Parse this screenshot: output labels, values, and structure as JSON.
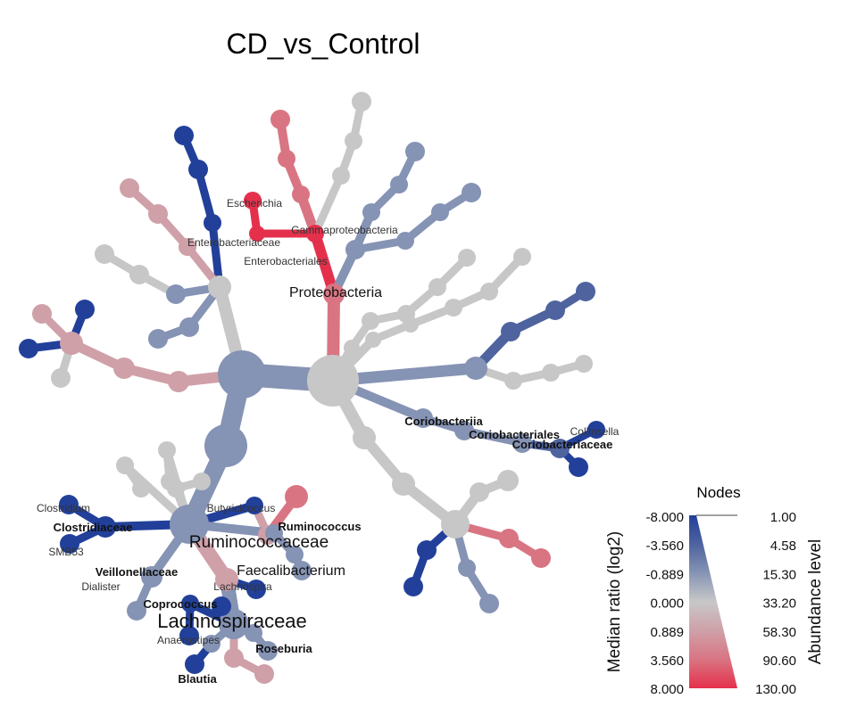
{
  "title": "CD_vs_Control",
  "colors": {
    "c_-8": "#22409a",
    "c_-3.56": "#4f639f",
    "c_-0.889": "#8593b4",
    "c_0": "#c7c7c7",
    "c_0.889": "#cfa0a8",
    "c_3.56": "#d97583",
    "c_8": "#e5304c"
  },
  "labels": {
    "proteobacteria": "Proteobacteria",
    "gammaproteobacteria": "Gammaproteobacteria",
    "enterobacteriales": "Enterobacteriales",
    "enterobacteriaceae": "Enterobacteriaceae",
    "escherichia": "Escherichia",
    "coriobacteriia": "Coriobacteriia",
    "coriobacteriales": "Coriobacteriales",
    "coriobacteriaceae": "Coriobacteriaceae",
    "collinsella": "Collinsella",
    "clostridium": "Clostridium",
    "clostridiaceae": "Clostridiaceae",
    "smb53": "SMB53",
    "butyricicoccus": "Butyricicoccus",
    "ruminococcus": "Ruminococcus",
    "ruminococcaceae": "Ruminococcaceae",
    "veillonellaceae": "Veillonellaceae",
    "faecalibacterium": "Faecalibacterium",
    "dialister": "Dialister",
    "lachnospira": "Lachnospira",
    "coprococcus": "Coprococcus",
    "lachnospiraceae": "Lachnospiraceae",
    "anaerostipes": "Anaerostipes",
    "roseburia": "Roseburia",
    "blautia": "Blautia"
  },
  "legend": {
    "title": "Nodes",
    "left_axis": "Median ratio (log2)",
    "right_axis": "Abundance level",
    "left_ticks": [
      "-8.000",
      "-3.560",
      "-0.889",
      "0.000",
      "0.889",
      "3.560",
      "8.000"
    ],
    "right_ticks": [
      "1.00",
      "4.58",
      "15.30",
      "33.20",
      "58.30",
      "90.60",
      "130.00"
    ]
  }
}
